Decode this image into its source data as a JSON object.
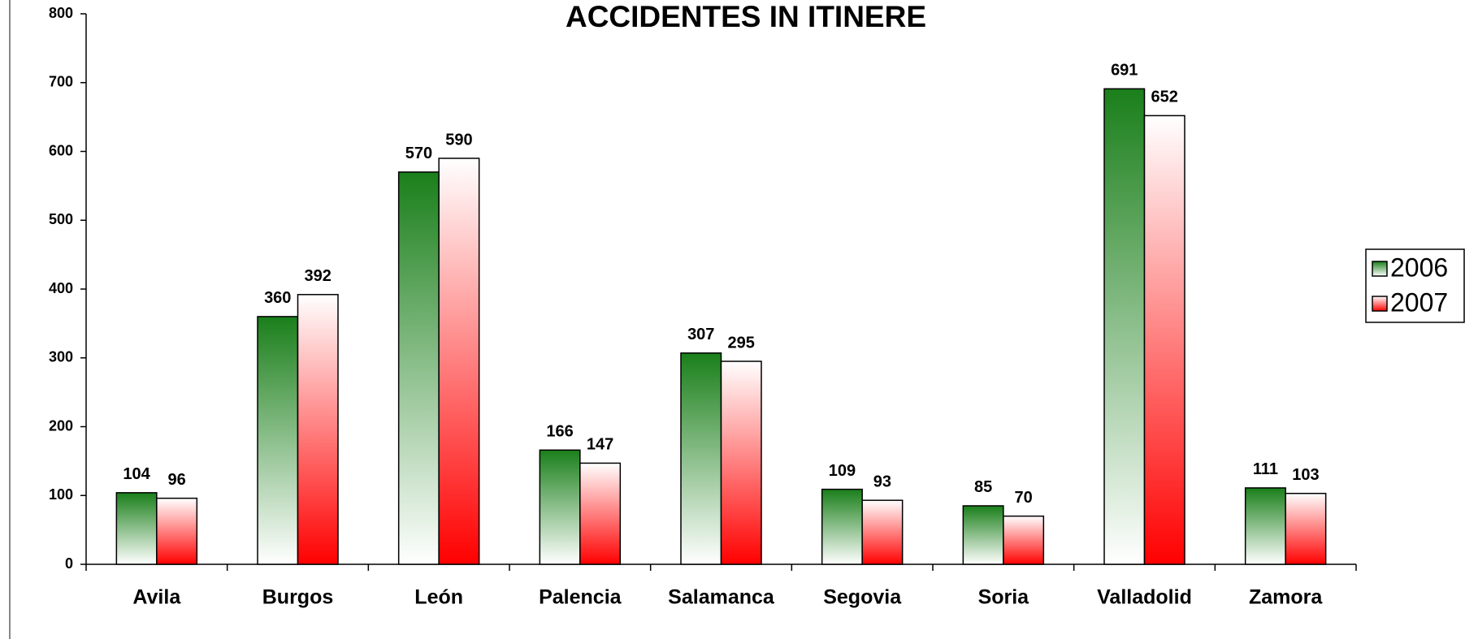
{
  "chart_data": {
    "type": "bar",
    "title": "ACCIDENTES IN ITINERE",
    "categories": [
      "Avila",
      "Burgos",
      "León",
      "Palencia",
      "Salamanca",
      "Segovia",
      "Soria",
      "Valladolid",
      "Zamora"
    ],
    "series": [
      {
        "name": "2006",
        "color": "#1a7f1a",
        "values": [
          104,
          360,
          570,
          166,
          307,
          109,
          85,
          691,
          111
        ]
      },
      {
        "name": "2007",
        "color": "#ff0000",
        "values": [
          96,
          392,
          590,
          147,
          295,
          93,
          70,
          652,
          103
        ]
      }
    ],
    "ylim": [
      0,
      800
    ],
    "yticks": [
      0,
      100,
      200,
      300,
      400,
      500,
      600,
      700,
      800
    ],
    "grid": false,
    "legend": "right"
  }
}
